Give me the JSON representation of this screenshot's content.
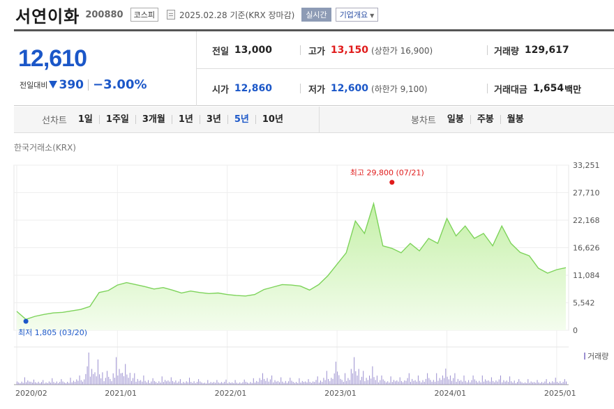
{
  "header": {
    "name": "서연이화",
    "code": "200880",
    "market": "코스피",
    "date_text": "2025.02.28 기준(KRX 장마감)",
    "realtime_label": "실시간",
    "company_label": "기업개요"
  },
  "price": {
    "current": "12,610",
    "diff_label": "전일대비",
    "diff_value": "390",
    "diff_pct": "−3.00%"
  },
  "stats": {
    "prev": {
      "label": "전일",
      "value": "13,000"
    },
    "high": {
      "label": "고가",
      "value": "13,150",
      "sub": "(상한가 16,900)"
    },
    "volume": {
      "label": "거래량",
      "value": "129,617"
    },
    "open": {
      "label": "시가",
      "value": "12,860"
    },
    "low": {
      "label": "저가",
      "value": "12,600",
      "sub": "(하한가 9,100)"
    },
    "amount": {
      "label": "거래대금",
      "value": "1,654",
      "unit": "백만"
    }
  },
  "period": {
    "line_title": "선차트",
    "line_items": [
      "1일",
      "1주일",
      "3개월",
      "1년",
      "3년",
      "5년",
      "10년"
    ],
    "active": "5년",
    "candle_title": "봉차트",
    "candle_items": [
      "일봉",
      "주봉",
      "월봉"
    ]
  },
  "chart_data": {
    "type": "area",
    "source": "한국거래소(KRX)",
    "colors": {
      "line": "#7dd35a",
      "fill_top": "#c5f0a8",
      "fill_bottom": "#f4fdee",
      "high": "#e01b1b",
      "low": "#1b57c8",
      "volume": "#9b8fd0"
    },
    "ylim": [
      0,
      33251
    ],
    "y_ticks": [
      "33,251",
      "27,710",
      "22,168",
      "16,626",
      "11,084",
      "5,542",
      "0"
    ],
    "x_ticks": [
      "2020/02",
      "2021/01",
      "2022/01",
      "2023/01",
      "2024/01",
      "2025/01"
    ],
    "x": [
      "2020-02",
      "2020-03",
      "2020-04",
      "2020-05",
      "2020-06",
      "2020-07",
      "2020-08",
      "2020-09",
      "2020-10",
      "2020-11",
      "2020-12",
      "2021-01",
      "2021-02",
      "2021-03",
      "2021-04",
      "2021-05",
      "2021-06",
      "2021-07",
      "2021-08",
      "2021-09",
      "2021-10",
      "2021-11",
      "2021-12",
      "2022-01",
      "2022-02",
      "2022-03",
      "2022-04",
      "2022-05",
      "2022-06",
      "2022-07",
      "2022-08",
      "2022-09",
      "2022-10",
      "2022-11",
      "2022-12",
      "2023-01",
      "2023-02",
      "2023-03",
      "2023-04",
      "2023-05",
      "2023-06",
      "2023-07",
      "2023-08",
      "2023-09",
      "2023-10",
      "2023-11",
      "2023-12",
      "2024-01",
      "2024-02",
      "2024-03",
      "2024-04",
      "2024-05",
      "2024-06",
      "2024-07",
      "2024-08",
      "2024-09",
      "2024-10",
      "2024-11",
      "2024-12",
      "2025-01",
      "2025-02"
    ],
    "values": [
      3800,
      2200,
      2800,
      3200,
      3500,
      3600,
      3900,
      4200,
      4800,
      7600,
      8000,
      9100,
      9600,
      9200,
      8800,
      8300,
      8600,
      8100,
      7500,
      7900,
      7600,
      7400,
      7500,
      7200,
      7000,
      6900,
      7200,
      8200,
      8700,
      9200,
      9100,
      8900,
      8100,
      9200,
      11000,
      13300,
      15600,
      22000,
      19500,
      25500,
      17000,
      16500,
      15600,
      17500,
      16000,
      18500,
      17500,
      22500,
      19000,
      21000,
      18500,
      19500,
      17000,
      21000,
      17500,
      15700,
      15000,
      12500,
      11500,
      12200,
      12600
    ],
    "series_name": "거래량",
    "volume": [
      1.2,
      1.6,
      1.1,
      1.0,
      1.4,
      1.2,
      1.5,
      2.0,
      7.0,
      5.5,
      3.0,
      6.0,
      4.5,
      2.5,
      2.0,
      1.4,
      1.8,
      1.6,
      1.2,
      1.5,
      1.2,
      1.0,
      1.0,
      1.1,
      1.0,
      1.1,
      1.4,
      2.5,
      2.0,
      1.6,
      1.5,
      1.4,
      1.2,
      1.8,
      3.0,
      5.0,
      2.5,
      6.0,
      3.0,
      4.0,
      2.0,
      1.8,
      1.6,
      2.5,
      2.0,
      2.5,
      2.5,
      3.5,
      2.5,
      2.0,
      2.0,
      2.0,
      1.6,
      2.0,
      1.8,
      1.2,
      1.2,
      1.0,
      1.2,
      1.5,
      1.2
    ],
    "annotations": {
      "high": {
        "label": "최고 29,800 (07/21)",
        "value": 29800,
        "x": "2023-07"
      },
      "low": {
        "label": "최저 1,805 (03/20)",
        "value": 1805,
        "x": "2020-03"
      }
    }
  }
}
